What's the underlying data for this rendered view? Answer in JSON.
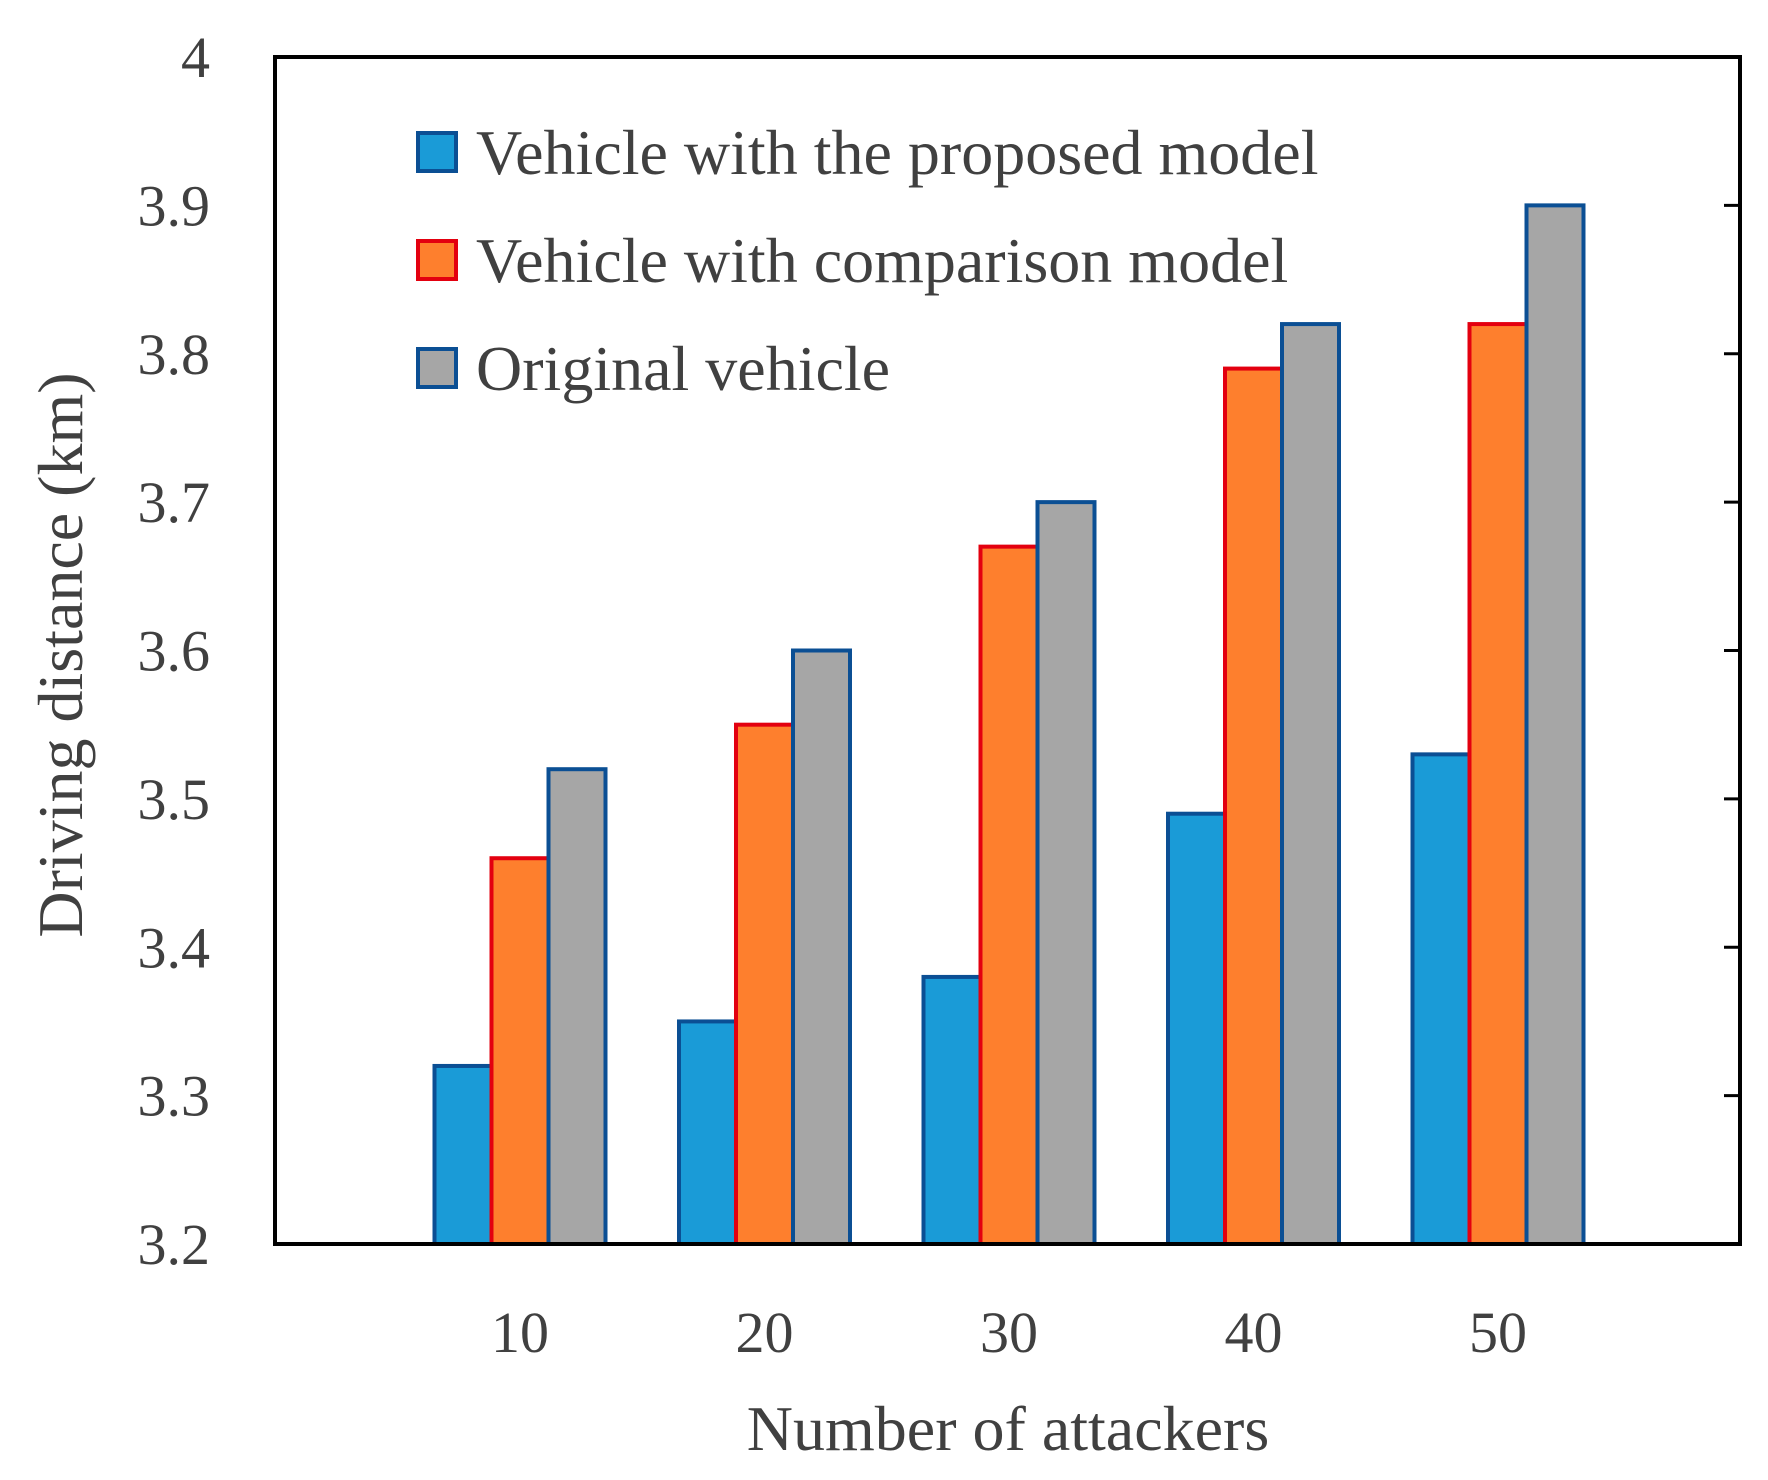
{
  "chart_data": {
    "type": "bar",
    "title": "",
    "xlabel": "Number of attackers",
    "ylabel": "Driving distance (km)",
    "ylim": [
      3.2,
      4.0
    ],
    "yticks": [
      "3.2",
      "3.3",
      "3.4",
      "3.5",
      "3.6",
      "3.7",
      "3.8",
      "3.9",
      "4"
    ],
    "categories": [
      "10",
      "20",
      "30",
      "40",
      "50"
    ],
    "grid": false,
    "legend_position": "top-left",
    "series": [
      {
        "name": "Vehicle with the proposed model",
        "values": [
          3.32,
          3.35,
          3.38,
          3.49,
          3.53
        ],
        "fill": "#1a9bd7",
        "stroke": "#0b4f94"
      },
      {
        "name": "Vehicle with comparison model",
        "values": [
          3.46,
          3.55,
          3.67,
          3.79,
          3.82
        ],
        "fill": "#fe7f2d",
        "stroke": "#e3000f"
      },
      {
        "name": "Original vehicle",
        "values": [
          3.52,
          3.6,
          3.7,
          3.82,
          3.9
        ],
        "fill": "#a6a6a6",
        "stroke": "#0b4f94"
      }
    ]
  }
}
